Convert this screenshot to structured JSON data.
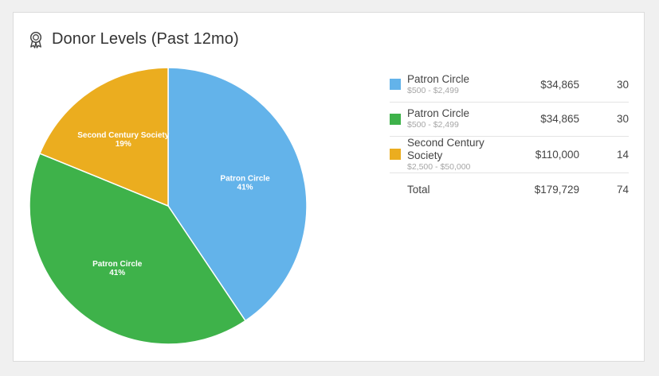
{
  "card": {
    "title": "Donor Levels (Past 12mo)",
    "icon": "award-ribbon-icon"
  },
  "colors": {
    "blue": "#63b3ea",
    "green": "#3eb24a",
    "orange": "#ebad1f"
  },
  "chart_data": {
    "type": "pie",
    "slices": [
      {
        "label": "Patron Circle",
        "percent_label": "41%",
        "value": 41,
        "color": "#63b3ea"
      },
      {
        "label": "Patron Circle",
        "percent_label": "41%",
        "value": 41,
        "color": "#3eb24a"
      },
      {
        "label": "Second Century Society",
        "percent_label": "19%",
        "value": 19,
        "color": "#ebad1f"
      }
    ]
  },
  "legend": {
    "rows": [
      {
        "name": "Patron Circle",
        "range": "$500 - $2,499",
        "amount": "$34,865",
        "count": "30",
        "color": "#63b3ea"
      },
      {
        "name": "Patron Circle",
        "range": "$500 - $2,499",
        "amount": "$34,865",
        "count": "30",
        "color": "#3eb24a"
      },
      {
        "name": "Second Century Society",
        "range": "$2,500 - $50,000",
        "amount": "$110,000",
        "count": "14",
        "color": "#ebad1f"
      }
    ],
    "total": {
      "label": "Total",
      "amount": "$179,729",
      "count": "74"
    }
  }
}
